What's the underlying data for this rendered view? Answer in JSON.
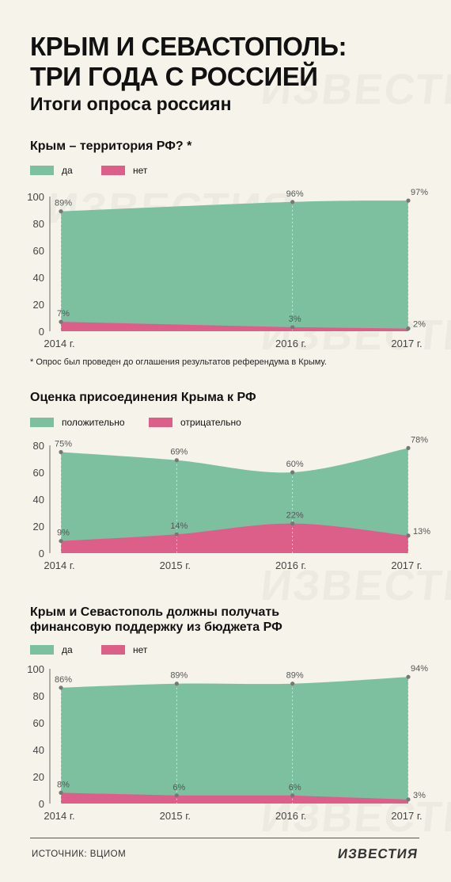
{
  "header": {
    "title_line1": "КРЫМ И СЕВАСТОПОЛЬ:",
    "title_line2": "ТРИ ГОДА С РОССИЕЙ",
    "subtitle": "Итоги опроса россиян",
    "watermark": "ИЗВЕСТИЯ"
  },
  "colors": {
    "green": "#7cc0a0",
    "pink": "#dc5f8a",
    "point": "#777777",
    "background": "#f6f4ea"
  },
  "footnote": "* Опрос был проведен до оглашения результатов референдума в Крыму.",
  "footer": {
    "source": "ИСТОЧНИК:  ВЦИОМ",
    "logo": "ИЗВЕСТИЯ"
  },
  "chart_data": [
    {
      "type": "area",
      "title": "Крым – территория РФ? *",
      "legend": [
        "да",
        "нет"
      ],
      "x": [
        "2014 г.",
        "2016 г.",
        "2017 г."
      ],
      "x_values": [
        2014,
        2016,
        2017
      ],
      "ylim": [
        0,
        100
      ],
      "yticks": [
        0,
        20,
        40,
        60,
        80,
        100
      ],
      "series": [
        {
          "name": "да",
          "values": [
            89,
            96,
            97
          ],
          "labels": [
            "89%",
            "96%",
            "97%"
          ]
        },
        {
          "name": "нет",
          "values": [
            7,
            3,
            2
          ],
          "labels": [
            "7%",
            "3%",
            "2%"
          ]
        }
      ]
    },
    {
      "type": "area",
      "title": "Оценка присоединения Крыма к РФ",
      "legend": [
        "положительно",
        "отрицательно"
      ],
      "x": [
        "2014 г.",
        "2015 г.",
        "2016 г.",
        "2017 г."
      ],
      "x_values": [
        2014,
        2015,
        2016,
        2017
      ],
      "ylim": [
        0,
        80
      ],
      "yticks": [
        0,
        20,
        40,
        60,
        80
      ],
      "series": [
        {
          "name": "положительно",
          "values": [
            75,
            69,
            60,
            78
          ],
          "labels": [
            "75%",
            "69%",
            "60%",
            "78%"
          ]
        },
        {
          "name": "отрицательно",
          "values": [
            9,
            14,
            22,
            13
          ],
          "labels": [
            "9%",
            "14%",
            "22%",
            "13%"
          ]
        }
      ]
    },
    {
      "type": "area",
      "title_line1": "Крым и Севастополь должны получать",
      "title_line2": "финансовую поддержку из бюджета РФ",
      "legend": [
        "да",
        "нет"
      ],
      "x": [
        "2014 г.",
        "2015 г.",
        "2016 г.",
        "2017 г."
      ],
      "x_values": [
        2014,
        2015,
        2016,
        2017
      ],
      "ylim": [
        0,
        100
      ],
      "yticks": [
        0,
        20,
        40,
        60,
        80,
        100
      ],
      "series": [
        {
          "name": "да",
          "values": [
            86,
            89,
            89,
            94
          ],
          "labels": [
            "86%",
            "89%",
            "89%",
            "94%"
          ]
        },
        {
          "name": "нет",
          "values": [
            8,
            6,
            6,
            3
          ],
          "labels": [
            "8%",
            "6%",
            "6%",
            "3%"
          ]
        }
      ]
    }
  ]
}
